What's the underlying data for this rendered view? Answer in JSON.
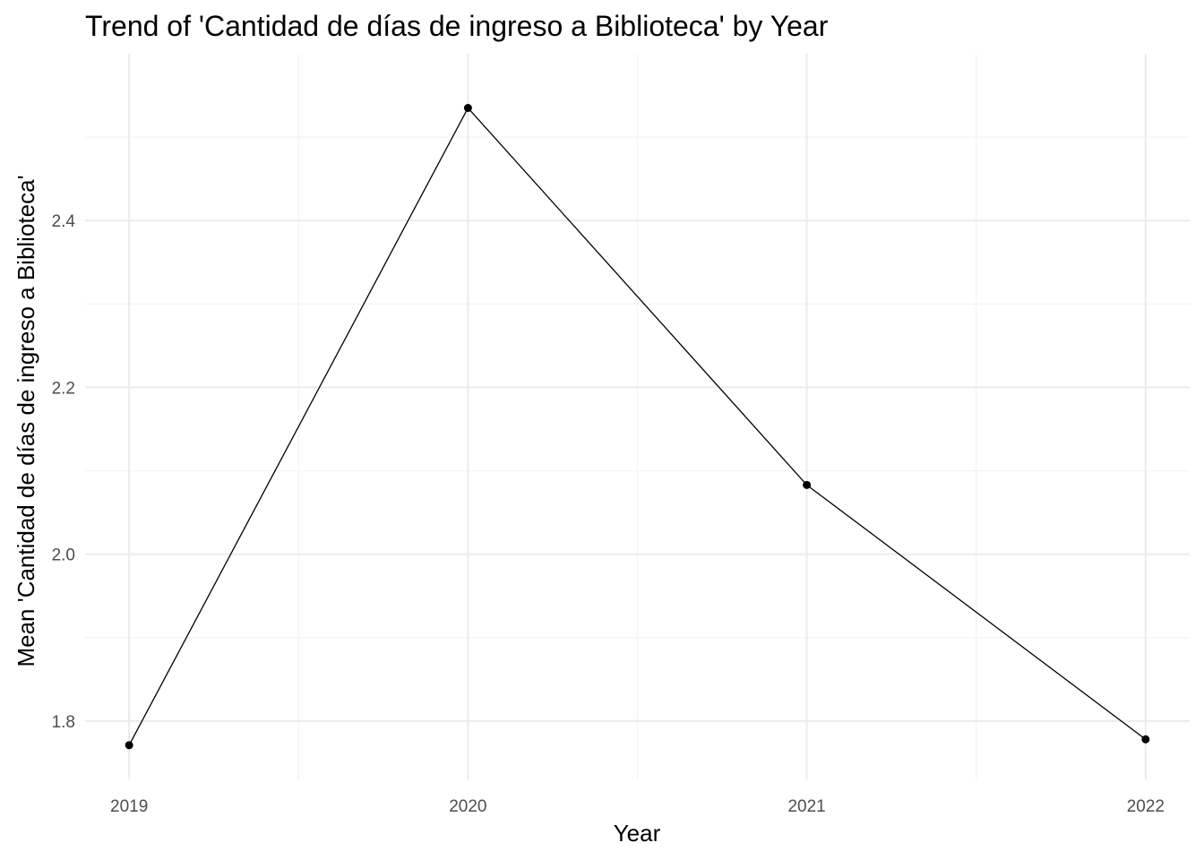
{
  "chart_data": {
    "type": "line",
    "title": "Trend of 'Cantidad de días de ingreso a Biblioteca' by Year",
    "xlabel": "Year",
    "ylabel": "Mean 'Cantidad de días de ingreso a Biblioteca'",
    "x": [
      2019,
      2020,
      2021,
      2022
    ],
    "x_tick_labels": [
      "2019",
      "2020",
      "2021",
      "2022"
    ],
    "y_ticks": [
      1.8,
      2.0,
      2.2,
      2.4
    ],
    "y_tick_labels": [
      "1.8",
      "2.0",
      "2.2",
      "2.4"
    ],
    "ylim": [
      1.73,
      2.6
    ],
    "xlim": [
      2018.87,
      2022.13
    ],
    "grid": true,
    "legend": "none",
    "series": [
      {
        "values": [
          1.771,
          2.535,
          2.083,
          1.778
        ]
      }
    ],
    "colors": {
      "line": "#000000",
      "point": "#000000",
      "grid": "#ebebeb",
      "tick_text": "#4d4d4d"
    }
  }
}
